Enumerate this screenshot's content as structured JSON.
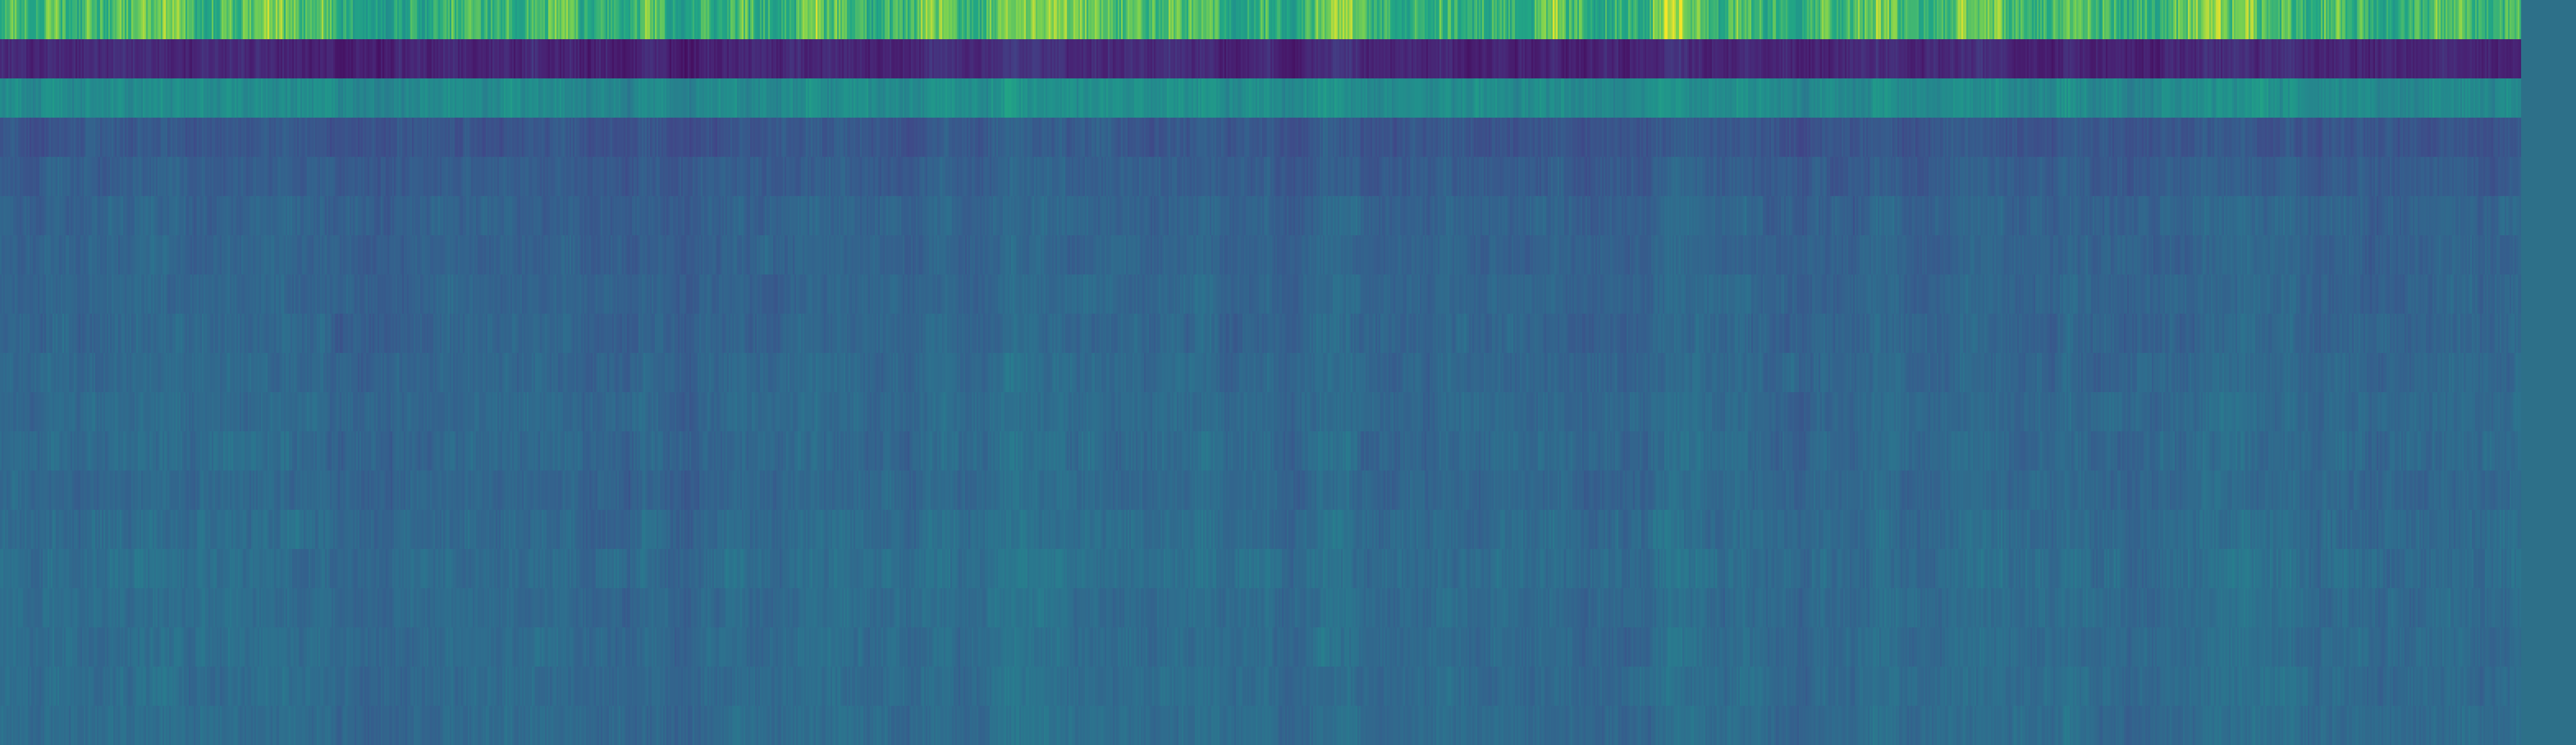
{
  "chart_data": {
    "type": "heatmap",
    "title": "",
    "xlabel": "",
    "ylabel": "",
    "colormap": "viridis",
    "colors": {
      "low": "#440154",
      "mid": "#21918c",
      "high": "#fde725",
      "padding": "#2d7089"
    },
    "grid": false,
    "legend": "none",
    "n_rows": 19,
    "n_cols": 1536,
    "value_range": [
      0,
      1
    ],
    "row_mean_values": [
      0.8,
      0.14,
      0.6,
      0.34,
      0.37,
      0.4,
      0.4,
      0.41,
      0.41,
      0.42,
      0.43,
      0.43,
      0.42,
      0.44,
      0.45,
      0.44,
      0.44,
      0.44,
      0.44
    ],
    "row_variation": [
      0.1,
      0.05,
      0.06,
      0.05,
      0.045,
      0.045,
      0.04,
      0.04,
      0.045,
      0.04,
      0.04,
      0.045,
      0.04,
      0.045,
      0.045,
      0.04,
      0.04,
      0.04,
      0.04
    ],
    "padding_value": 0.36
  }
}
